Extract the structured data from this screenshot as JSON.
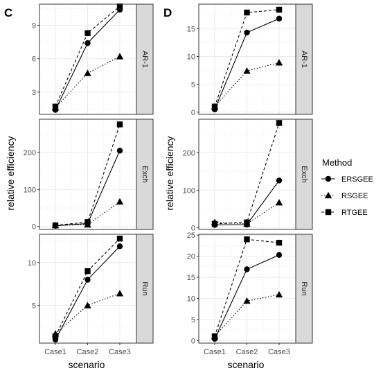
{
  "chart_data": {
    "type": "line",
    "xlabel": "scenario",
    "ylabel": "relative efficiency",
    "categories": [
      "Case1",
      "Case2",
      "Case3"
    ],
    "legend": {
      "title": "Method",
      "position": "right",
      "entries": [
        {
          "name": "ERSGEE",
          "shape": "circle",
          "dash": "solid"
        },
        {
          "name": "RSGEE",
          "shape": "triangle",
          "dash": "dotted"
        },
        {
          "name": "RTGEE",
          "shape": "square",
          "dash": "dashed"
        }
      ]
    },
    "grid": true,
    "panels": [
      {
        "tag": "C",
        "column": 0,
        "row": 0,
        "strip": "AR-1",
        "ylim": [
          1.0,
          10.9
        ],
        "yticks": [
          3,
          6,
          9
        ],
        "series": [
          {
            "name": "ERSGEE",
            "values": [
              1.4,
              7.4,
              10.4
            ]
          },
          {
            "name": "RSGEE",
            "values": [
              1.6,
              4.7,
              6.2
            ]
          },
          {
            "name": "RTGEE",
            "values": [
              1.7,
              8.3,
              10.7
            ]
          }
        ]
      },
      {
        "tag": "",
        "column": 0,
        "row": 1,
        "strip": "Exch",
        "ylim": [
          -8,
          290
        ],
        "yticks": [
          0,
          100,
          200
        ],
        "series": [
          {
            "name": "ERSGEE",
            "values": [
              2,
              8,
              205
            ]
          },
          {
            "name": "RSGEE",
            "values": [
              3,
              5,
              67
            ]
          },
          {
            "name": "RTGEE",
            "values": [
              3,
              12,
              276
            ]
          }
        ]
      },
      {
        "tag": "",
        "column": 0,
        "row": 2,
        "strip": "Run",
        "ylim": [
          0.6,
          13.3
        ],
        "yticks": [
          5,
          10
        ],
        "series": [
          {
            "name": "ERSGEE",
            "values": [
              1.0,
              8.0,
              11.9
            ]
          },
          {
            "name": "RSGEE",
            "values": [
              1.7,
              5.0,
              6.4
            ]
          },
          {
            "name": "RTGEE",
            "values": [
              1.4,
              9.0,
              12.8
            ]
          }
        ]
      },
      {
        "tag": "D",
        "column": 1,
        "row": 0,
        "strip": "AR-1",
        "ylim": [
          -0.4,
          19.4
        ],
        "yticks": [
          0,
          5,
          10,
          15
        ],
        "series": [
          {
            "name": "ERSGEE",
            "values": [
              0.5,
              14.3,
              16.8
            ]
          },
          {
            "name": "RSGEE",
            "values": [
              1.0,
              7.4,
              8.9
            ]
          },
          {
            "name": "RTGEE",
            "values": [
              1.0,
              17.9,
              18.4
            ]
          }
        ]
      },
      {
        "tag": "",
        "column": 1,
        "row": 1,
        "strip": "Exch",
        "ylim": [
          -5,
          290
        ],
        "yticks": [
          0,
          100,
          200
        ],
        "series": [
          {
            "name": "ERSGEE",
            "values": [
              7,
              8,
              126
            ]
          },
          {
            "name": "RSGEE",
            "values": [
              14,
              10,
              67
            ]
          },
          {
            "name": "RTGEE",
            "values": [
              10,
              14,
              280
            ]
          }
        ]
      },
      {
        "tag": "",
        "column": 1,
        "row": 2,
        "strip": "Run",
        "ylim": [
          -0.6,
          25.2
        ],
        "yticks": [
          0,
          5,
          10,
          15,
          20,
          25
        ],
        "series": [
          {
            "name": "ERSGEE",
            "values": [
              0.4,
              16.9,
              20.3
            ]
          },
          {
            "name": "RSGEE",
            "values": [
              1.0,
              9.4,
              10.9
            ]
          },
          {
            "name": "RTGEE",
            "values": [
              1.0,
              24.0,
              23.2
            ]
          }
        ]
      }
    ]
  }
}
